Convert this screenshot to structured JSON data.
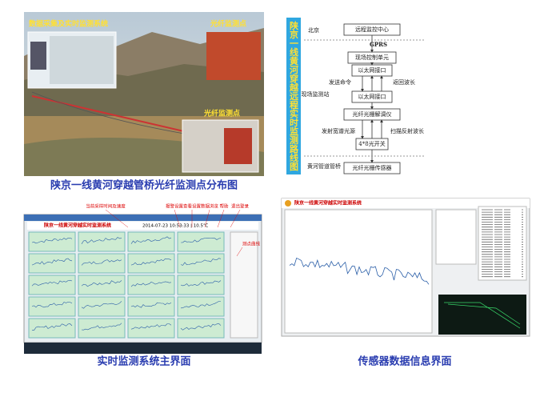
{
  "photo_panel": {
    "labels": [
      "数据采集及实时监测系统",
      "光纤监测点",
      "光纤监测点"
    ],
    "caption": "陕京一线黄河穿越管桥光纤监测点分布图"
  },
  "route_diagram": {
    "title": "陕京一线黄河穿越远程实时监测路线图",
    "nodes": [
      "远程监控中心",
      "现场控制单元",
      "以太网接口",
      "以太网接口",
      "光纤光栅解调仪",
      "4*8光开关",
      "光纤光栅传感器"
    ],
    "edge_labels": [
      "GPRS",
      "发送命令",
      "返回波长",
      "发射宽谱光源",
      "扫描反射波长"
    ],
    "site_labels": [
      "北京",
      "现场监测站",
      "黄河管道管桥"
    ]
  },
  "main_ui": {
    "window_title": "陕京一线黄河穿越实时监测系统",
    "timestamp": "2014-07-23 10:53:33 | 10.5℃",
    "annotations": [
      "当前采样时间及速度",
      "报警设置",
      "查看设置",
      "数据浏览",
      "帮助",
      "退出登录",
      "测点曲线"
    ],
    "caption": "实时监测系统主界面"
  },
  "sensor_ui": {
    "window_title": "陕京一线黄河穿越实时监测系统",
    "caption": "传感器数据信息界面"
  }
}
